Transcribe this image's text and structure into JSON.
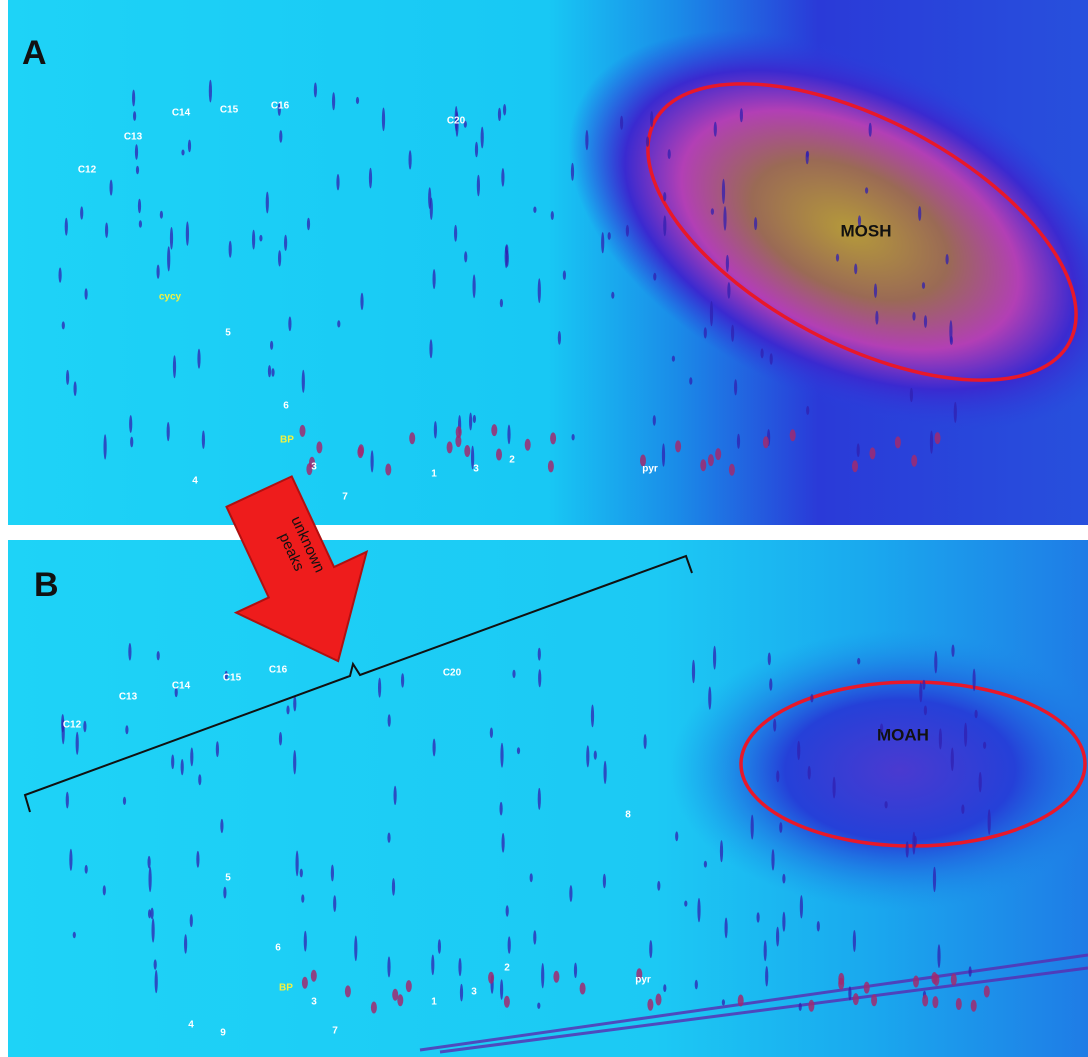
{
  "panel_a": {
    "letter": "A",
    "region": "MOSH",
    "labels": [
      "C12",
      "C13",
      "C14",
      "C15",
      "C16",
      "C20",
      "cycy",
      "5",
      "6",
      "BP",
      "3",
      "4",
      "7",
      "1",
      "3",
      "2",
      "pyr"
    ]
  },
  "panel_b": {
    "letter": "B",
    "region": "MOAH",
    "labels": [
      "C12",
      "C13",
      "C14",
      "C15",
      "C16",
      "C20",
      "8",
      "5",
      "6",
      "BP",
      "3",
      "2",
      "pyr",
      "1",
      "3",
      "4",
      "9",
      "7"
    ]
  },
  "arrow_label": [
    "unknown",
    "peaks"
  ]
}
